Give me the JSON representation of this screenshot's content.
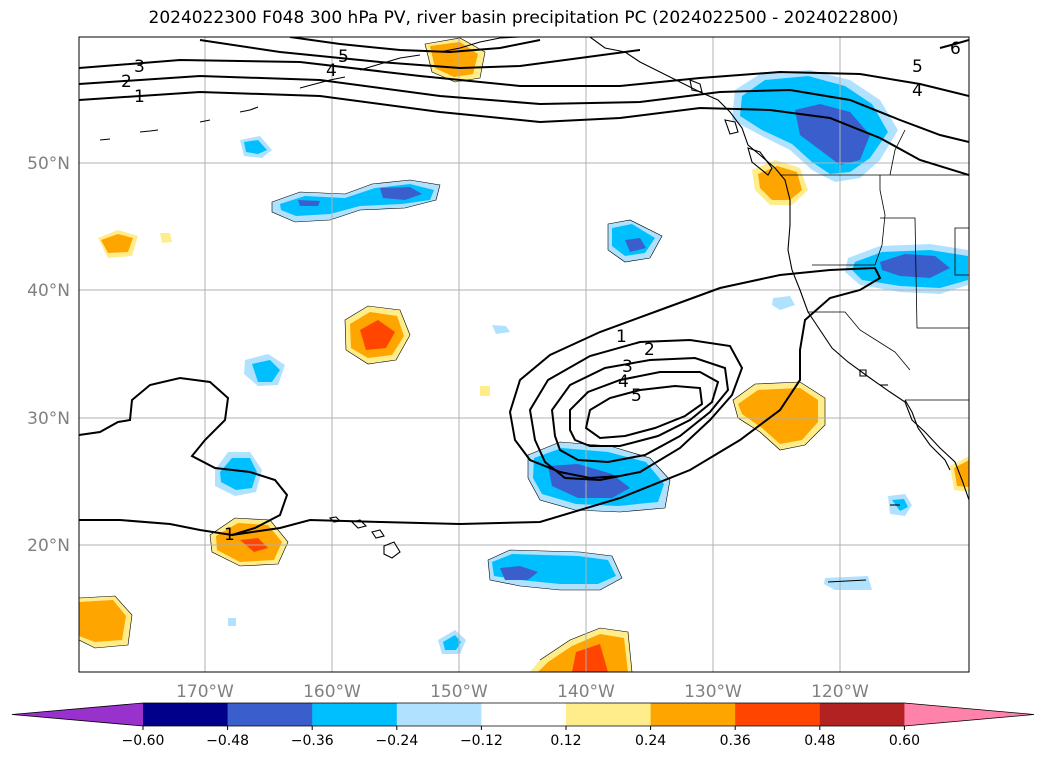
{
  "title": "2024022300 F048 300 hPa PV, river basin precipitation PC (2024022500 - 2024022800)",
  "lon_labels": [
    "170°W",
    "160°W",
    "150°W",
    "140°W",
    "130°W",
    "120°W"
  ],
  "lat_labels": [
    "50°N",
    "40°N",
    "30°N",
    "20°N"
  ],
  "colorbar": {
    "colors": [
      "#9932cc",
      "#00008b",
      "#3a5fcd",
      "#00bfff",
      "#b0e2ff",
      "#ffffff",
      "#ffec8b",
      "#ffa500",
      "#ff4500",
      "#b22222",
      "#ff82ab"
    ],
    "labels": [
      "−0.60",
      "−0.48",
      "−0.36",
      "−0.24",
      "−0.12",
      "0.12",
      "0.24",
      "0.36",
      "0.48",
      "0.60"
    ]
  },
  "pv_labels": [
    "1",
    "2",
    "3",
    "4",
    "5",
    "6"
  ]
}
